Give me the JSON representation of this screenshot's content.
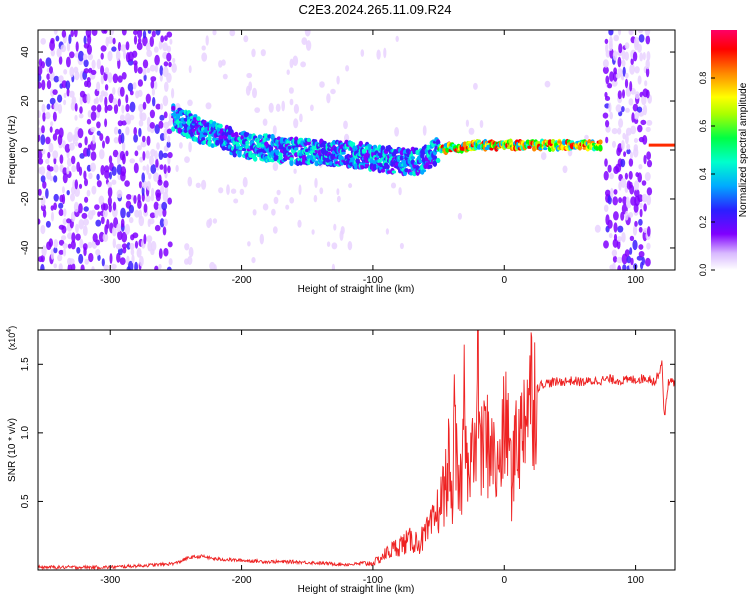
{
  "title": "C2E3.2024.265.11.09.R24",
  "chart_data": [
    {
      "type": "heatmap",
      "xlabel": "Height of straight line (km)",
      "ylabel": "Frequency (Hz)",
      "xlim": [
        -355,
        130
      ],
      "ylim": [
        -49,
        49
      ],
      "xticks": [
        "-300",
        "-200",
        "-100",
        "0",
        "100"
      ],
      "yticks": [
        "-40",
        "-20",
        "0",
        "20",
        "40"
      ],
      "colorbar": {
        "label": "Normalized spectral amplitude",
        "range": [
          0,
          1
        ],
        "ticks": [
          "0.0",
          "0.2",
          "0.4",
          "0.6",
          "0.8"
        ],
        "colors": [
          "#ffffff",
          "#e9d2ff",
          "#8000ff",
          "#3b1cff",
          "#00aaff",
          "#00ffcc",
          "#00ff00",
          "#aaff00",
          "#ffff00",
          "#ff8800",
          "#ff0000",
          "#ff0066"
        ]
      },
      "noise_regions": [
        [
          -355,
          -253
        ],
        [
          75,
          109
        ]
      ],
      "ridge": {
        "x": [
          -252,
          -230,
          -200,
          -170,
          -140,
          -110,
          -90,
          -75,
          -60,
          -50,
          -40,
          -30,
          -20,
          -10,
          0,
          20,
          40,
          60,
          74
        ],
        "freq": [
          13,
          8,
          2,
          0,
          -1,
          -2,
          -4,
          -5,
          -4,
          0,
          1,
          1,
          2,
          2,
          2,
          2,
          2,
          2,
          2
        ]
      },
      "carrier_line": {
        "x": [
          110,
          130
        ],
        "freq": 2
      }
    },
    {
      "type": "line",
      "xlabel": "Height of straight line (km)",
      "ylabel": "SNR (10 * v/v)",
      "y_multiplier": "(x10",
      "y_multiplier_exp": "4",
      "y_multiplier_close": ")",
      "xlim": [
        -355,
        130
      ],
      "ylim": [
        0,
        1.75
      ],
      "xticks": [
        "-300",
        "-200",
        "-100",
        "0",
        "100"
      ],
      "yticks": [
        "0.5",
        "1.0",
        "1.5"
      ],
      "series": [
        {
          "color": "#ee2222",
          "x": [
            -355,
            -330,
            -300,
            -280,
            -260,
            -250,
            -240,
            -230,
            -220,
            -200,
            -180,
            -160,
            -140,
            -120,
            -100,
            -95,
            -90,
            -85,
            -80,
            -75,
            -70,
            -65,
            -60,
            -55,
            -50,
            -45,
            -42,
            -40,
            -38,
            -35,
            -32,
            -30,
            -27,
            -25,
            -22,
            -20,
            -18,
            -15,
            -12,
            -10,
            -8,
            -5,
            -2,
            0,
            3,
            6,
            9,
            12,
            15,
            18,
            20,
            25,
            30,
            40,
            50,
            60,
            70,
            80,
            90,
            100,
            110,
            115,
            118,
            120,
            122,
            125,
            130
          ],
          "values": [
            0.02,
            0.02,
            0.02,
            0.03,
            0.04,
            0.05,
            0.09,
            0.1,
            0.08,
            0.07,
            0.06,
            0.06,
            0.05,
            0.04,
            0.05,
            0.08,
            0.12,
            0.15,
            0.18,
            0.2,
            0.22,
            0.2,
            0.25,
            0.32,
            0.45,
            0.6,
            0.8,
            0.45,
            1.0,
            0.55,
            0.7,
            1.45,
            0.6,
            0.85,
            0.75,
            1.75,
            0.8,
            0.95,
            0.9,
            1.0,
            0.8,
            0.7,
            0.9,
            1.0,
            1.05,
            0.55,
            1.1,
            0.9,
            1.2,
            1.25,
            1.3,
            1.33,
            1.36,
            1.37,
            1.38,
            1.37,
            1.38,
            1.39,
            1.38,
            1.39,
            1.4,
            1.37,
            1.45,
            1.52,
            1.1,
            1.38,
            1.36
          ]
        }
      ]
    }
  ]
}
